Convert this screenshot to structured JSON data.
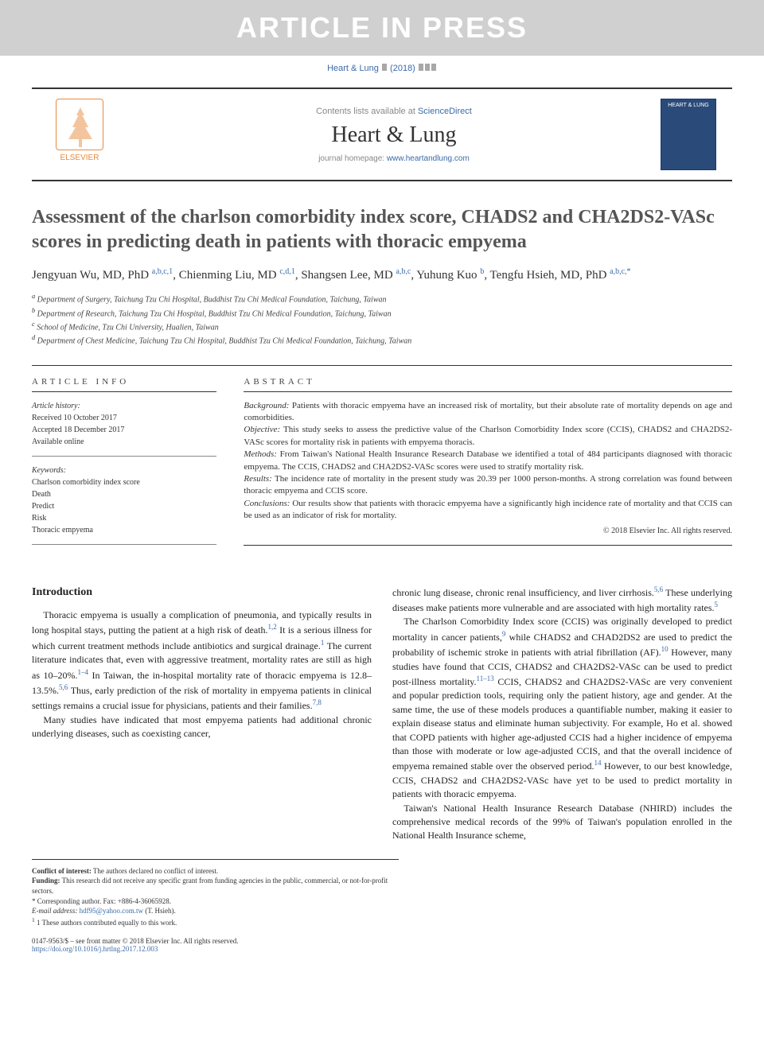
{
  "banner": "ARTICLE IN PRESS",
  "citation": {
    "journal": "Heart & Lung",
    "year": "(2018)"
  },
  "header": {
    "contents_text": "Contents lists available at ",
    "contents_link": "ScienceDirect",
    "journal_name": "Heart & Lung",
    "homepage_text": "journal homepage: ",
    "homepage_link": "www.heartandlung.com",
    "elsevier_label": "ELSEVIER",
    "thumb_label": "HEART & LUNG"
  },
  "article": {
    "title": "Assessment of the charlson comorbidity index score, CHADS2 and CHA2DS2-VASc scores in predicting death in patients with thoracic empyema",
    "authors_html": "Jengyuan Wu, MD, PhD <sup>a,b,c,1</sup>, Chienming Liu, MD <sup>c,d,1</sup>, Shangsen Lee, MD <sup>a,b,c</sup>, Yuhung Kuo <sup>b</sup>, Tengfu Hsieh, MD, PhD <sup>a,b,c,*</sup>",
    "affiliations": [
      "a Department of Surgery, Taichung Tzu Chi Hospital, Buddhist Tzu Chi Medical Foundation, Taichung, Taiwan",
      "b Department of Research, Taichung Tzu Chi Hospital, Buddhist Tzu Chi Medical Foundation, Taichung, Taiwan",
      "c School of Medicine, Tzu Chi University, Hualien, Taiwan",
      "d Department of Chest Medicine, Taichung Tzu Chi Hospital, Buddhist Tzu Chi Medical Foundation, Taichung, Taiwan"
    ]
  },
  "info": {
    "heading": "ARTICLE INFO",
    "history_label": "Article history:",
    "history_received": "Received 10 October 2017",
    "history_accepted": "Accepted 18 December 2017",
    "history_online": "Available online",
    "keywords_label": "Keywords:",
    "keywords": [
      "Charlson comorbidity index score",
      "Death",
      "Predict",
      "Risk",
      "Thoracic empyema"
    ]
  },
  "abstract": {
    "heading": "ABSTRACT",
    "background_label": "Background:",
    "background_text": " Patients with thoracic empyema have an increased risk of mortality, but their absolute rate of mortality depends on age and comorbidities.",
    "objective_label": "Objective:",
    "objective_text": " This study seeks to assess the predictive value of the Charlson Comorbidity Index score (CCIS), CHADS2 and CHA2DS2-VASc scores for mortality risk in patients with empyema thoracis.",
    "methods_label": "Methods:",
    "methods_text": " From Taiwan's National Health Insurance Research Database we identified a total of 484 participants diagnosed with thoracic empyema. The CCIS, CHADS2 and CHA2DS2-VASc scores were used to stratify mortality risk.",
    "results_label": "Results:",
    "results_text": " The incidence rate of mortality in the present study was 20.39 per 1000 person-months. A strong correlation was found between thoracic empyema and CCIS score.",
    "conclusions_label": "Conclusions:",
    "conclusions_text": " Our results show that patients with thoracic empyema have a significantly high incidence rate of mortality and that CCIS can be used as an indicator of risk for mortality.",
    "copyright": "© 2018 Elsevier Inc. All rights reserved."
  },
  "body": {
    "intro_heading": "Introduction",
    "col1_p1": "Thoracic empyema is usually a complication of pneumonia, and typically results in long hospital stays, putting the patient at a high risk of death.<sup>1,2</sup> It is a serious illness for which current treatment methods include antibiotics and surgical drainage.<sup>1</sup> The current literature indicates that, even with aggressive treatment, mortality rates are still as high as 10–20%.<sup>1–4</sup> In Taiwan, the in-hospital mortality rate of thoracic empyema is 12.8–13.5%.<sup>5,6</sup> Thus, early prediction of the risk of mortality in empyema patients in clinical settings remains a crucial issue for physicians, patients and their families.<sup>7,8</sup>",
    "col1_p2": "Many studies have indicated that most empyema patients had additional chronic underlying diseases, such as coexisting cancer,",
    "col2_p1": "chronic lung disease, chronic renal insufficiency, and liver cirrhosis.<sup>5,6</sup> These underlying diseases make patients more vulnerable and are associated with high mortality rates.<sup>5</sup>",
    "col2_p2": "The Charlson Comorbidity Index score (CCIS) was originally developed to predict mortality in cancer patients,<sup>9</sup> while CHADS2 and CHAD2DS2 are used to predict the probability of ischemic stroke in patients with atrial fibrillation (AF).<sup>10</sup> However, many studies have found that CCIS, CHADS2 and CHA2DS2-VASc can be used to predict post-illness mortality.<sup>11–13</sup> CCIS, CHADS2 and CHA2DS2-VASc are very convenient and popular prediction tools, requiring only the patient history, age and gender. At the same time, the use of these models produces a quantifiable number, making it easier to explain disease status and eliminate human subjectivity. For example, Ho et al. showed that COPD patients with higher age-adjusted CCIS had a higher incidence of empyema than those with moderate or low age-adjusted CCIS, and that the overall incidence of empyema remained stable over the observed period.<sup>14</sup> However, to our best knowledge, CCIS, CHADS2 and CHA2DS2-VASc have yet to be used to predict mortality in patients with thoracic empyema.",
    "col2_p3": "Taiwan's National Health Insurance Research Database (NHIRD) includes the comprehensive medical records of the 99% of Taiwan's population enrolled in the National Health Insurance scheme,"
  },
  "footnotes": {
    "conflict_label": "Conflict of interest:",
    "conflict_text": " The authors declared no conflict of interest.",
    "funding_label": "Funding:",
    "funding_text": " This research did not receive any specific grant from funding agencies in the public, commercial, or not-for-profit sectors.",
    "corresponding": "* Corresponding author. Fax: +886-4-36065928.",
    "email_label": "E-mail address: ",
    "email": "hdf95@yahoo.com.tw",
    "email_suffix": " (T. Hsieh).",
    "equal": "1 These authors contributed equally to this work."
  },
  "footer": {
    "issn": "0147-9563/$ – see front matter © 2018 Elsevier Inc. All rights reserved.",
    "doi": "https://doi.org/10.1016/j.hrtlng.2017.12.003"
  },
  "colors": {
    "banner_bg": "#d0d0d0",
    "banner_fg": "#ffffff",
    "link": "#3a6aa8",
    "elsevier": "#e88b3e",
    "thumb_bg": "#2a4a7a",
    "rule": "#333333",
    "text": "#222222"
  }
}
